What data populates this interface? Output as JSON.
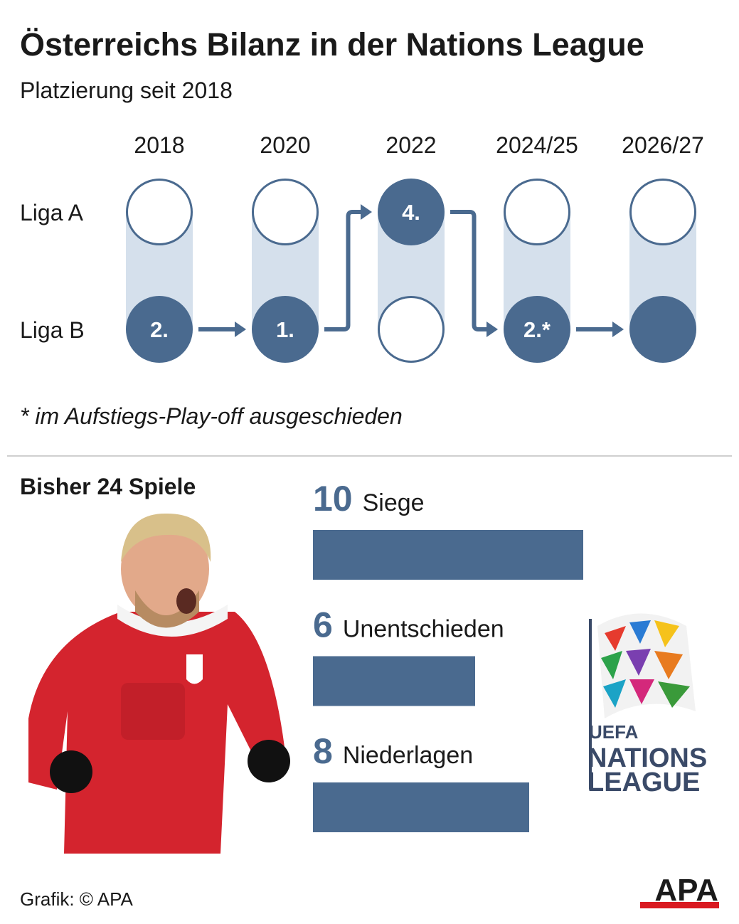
{
  "header": {
    "title": "Österreichs Bilanz in der Nations League",
    "subtitle": "Platzierung seit 2018"
  },
  "timeline": {
    "rows": [
      {
        "label": "Liga A"
      },
      {
        "label": "Liga B"
      }
    ],
    "seasons": [
      {
        "year": "2018",
        "placement": "2.",
        "row": 1
      },
      {
        "year": "2020",
        "placement": "1.",
        "row": 1
      },
      {
        "year": "2022",
        "placement": "4.",
        "row": 0
      },
      {
        "year": "2024/25",
        "placement": "2.*",
        "row": 1
      },
      {
        "year": "2026/27",
        "placement": null,
        "row": 1
      }
    ],
    "footnote": "* im Aufstiegs-Play-off ausgeschieden"
  },
  "chart_data": {
    "type": "bar",
    "title": "Bisher 24 Spiele",
    "categories": [
      "Siege",
      "Unentschieden",
      "Niederlagen"
    ],
    "values": [
      10,
      6,
      8
    ],
    "color": "#4a6a8f"
  },
  "logo": {
    "lines": [
      "UEFA",
      "NATIONS",
      "LEAGUE"
    ]
  },
  "footer": {
    "credit": "Grafik: © APA",
    "brand": "APA"
  }
}
